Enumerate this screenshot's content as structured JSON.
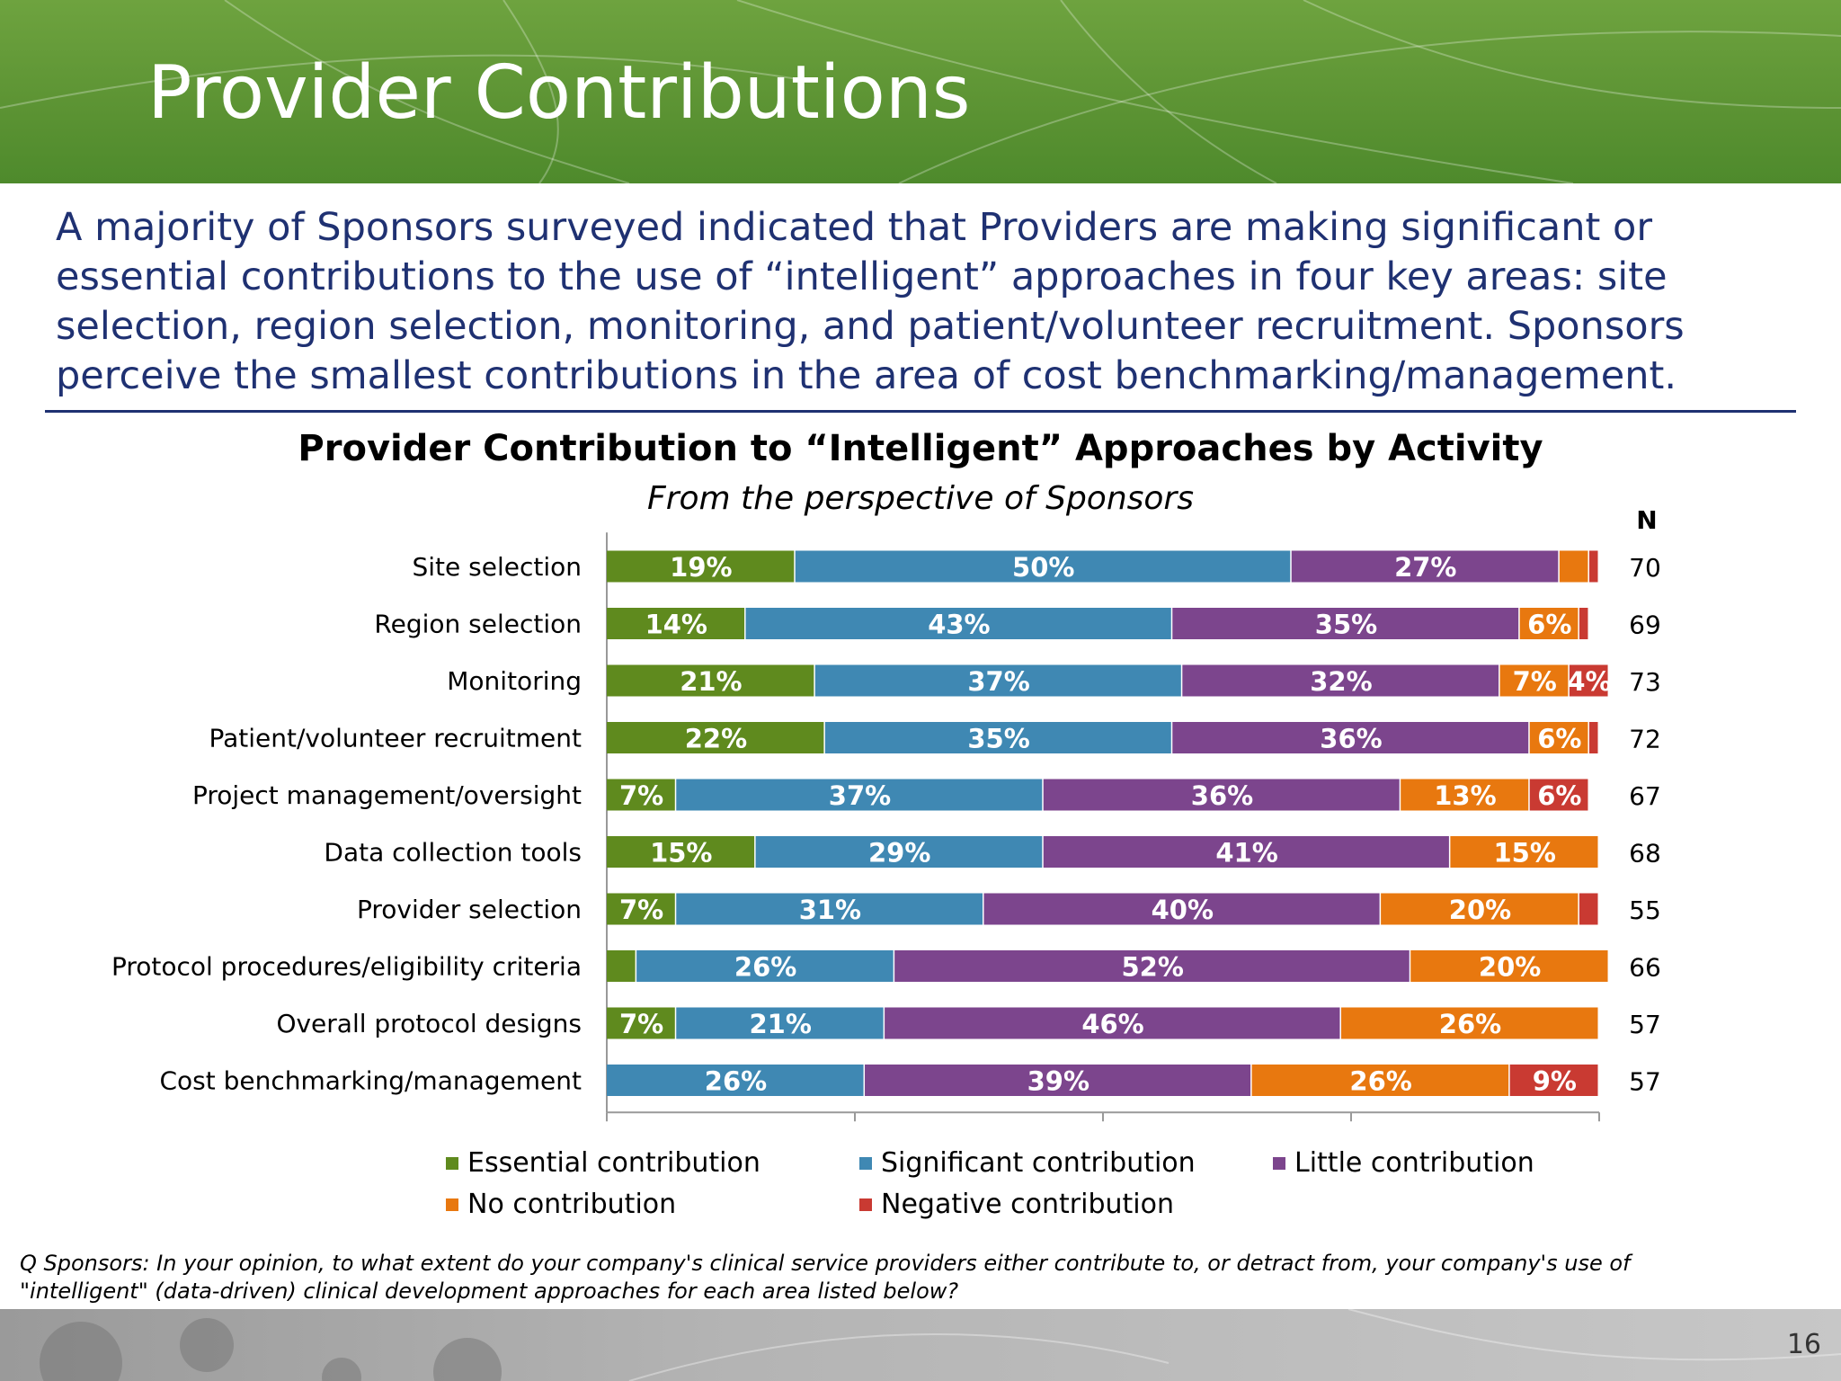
{
  "slide": {
    "title": "Provider Contributions",
    "intro": "A majority of Sponsors surveyed indicated that Providers are making significant or essential contributions to the use of “intelligent” approaches in four key areas: site selection, region selection, monitoring, and patient/volunteer recruitment.  Sponsors perceive the smallest contributions in the area of cost benchmarking/management.",
    "footnote": "Q Sponsors: In your opinion, to what extent do your company's clinical service providers either contribute to, or detract from, your company's use of \"intelligent\" (data-driven) clinical development approaches for each area listed below?",
    "page_number": "16",
    "colors": {
      "header_green": "#5d9434",
      "title_text": "#ffffff",
      "intro_text": "#1f3172",
      "rule": "#1f3172"
    }
  },
  "chart_data": {
    "type": "bar",
    "orientation": "horizontal",
    "stacked": true,
    "title": "Provider Contribution to “Intelligent” Approaches by Activity",
    "subtitle": "From the perspective of Sponsors",
    "n_header": "N",
    "xlim": [
      0,
      100
    ],
    "categories": [
      "Site selection",
      "Region selection",
      "Monitoring",
      "Patient/volunteer recruitment",
      "Project management/oversight",
      "Data collection tools",
      "Provider selection",
      "Protocol procedures/eligibility criteria",
      "Overall protocol designs",
      "Cost benchmarking/management"
    ],
    "n_values": [
      "70",
      "69",
      "73",
      "72",
      "67",
      "68",
      "55",
      "66",
      "57",
      "57"
    ],
    "series": [
      {
        "name": "Essential contribution",
        "color": "#5f8a1e",
        "values": [
          19,
          14,
          21,
          22,
          7,
          15,
          7,
          3,
          7,
          0
        ],
        "labels": [
          "19%",
          "14%",
          "21%",
          "22%",
          "7%",
          "15%",
          "7%",
          "",
          "7%",
          ""
        ]
      },
      {
        "name": "Significant contribution",
        "color": "#3f88b3",
        "values": [
          50,
          43,
          37,
          35,
          37,
          29,
          31,
          26,
          21,
          26
        ],
        "labels": [
          "50%",
          "43%",
          "37%",
          "35%",
          "37%",
          "29%",
          "31%",
          "26%",
          "21%",
          "26%"
        ]
      },
      {
        "name": "Little contribution",
        "color": "#7c458d",
        "values": [
          27,
          35,
          32,
          36,
          36,
          41,
          40,
          52,
          46,
          39
        ],
        "labels": [
          "27%",
          "35%",
          "32%",
          "36%",
          "36%",
          "41%",
          "40%",
          "52%",
          "46%",
          "39%"
        ]
      },
      {
        "name": "No contribution",
        "color": "#e8780f",
        "values": [
          3,
          6,
          7,
          6,
          13,
          15,
          20,
          20,
          26,
          26
        ],
        "labels": [
          "",
          "6%",
          "7%",
          "6%",
          "13%",
          "15%",
          "20%",
          "20%",
          "26%",
          "26%"
        ]
      },
      {
        "name": "Negative contribution",
        "color": "#c93a32",
        "values": [
          1,
          1,
          4,
          1,
          6,
          0,
          2,
          0,
          0,
          9
        ],
        "labels": [
          "",
          "",
          "4%",
          "",
          "6%",
          "",
          "",
          "",
          "",
          "9%"
        ]
      }
    ],
    "legend_position": "bottom"
  }
}
